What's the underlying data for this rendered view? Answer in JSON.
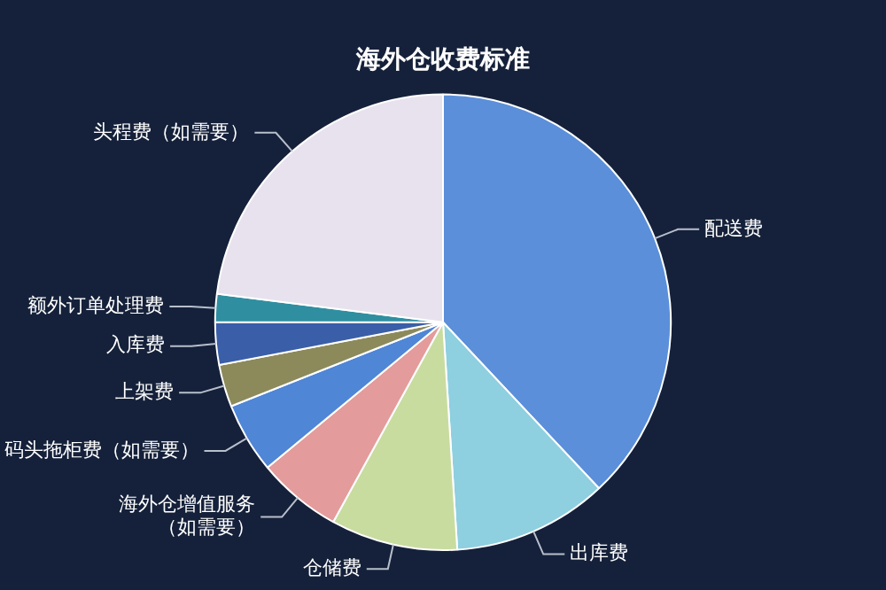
{
  "chart_data": {
    "type": "pie",
    "title": "海外仓收费标准",
    "categories": [
      "配送费",
      "出库费",
      "仓储费",
      "海外仓增值服务（如需要）",
      "码头拖柜费（如需要）",
      "上架费",
      "入库费",
      "额外订单处理费",
      "头程费（如需要）"
    ],
    "values": [
      38,
      11,
      9,
      6,
      5,
      3,
      3,
      2,
      23
    ],
    "colors": [
      "#5b8fd9",
      "#8ecfe0",
      "#c9dca0",
      "#e49b9b",
      "#4f86d6",
      "#8c8a5a",
      "#3a5ea8",
      "#2f8fa0",
      "#e8e2ee"
    ]
  }
}
